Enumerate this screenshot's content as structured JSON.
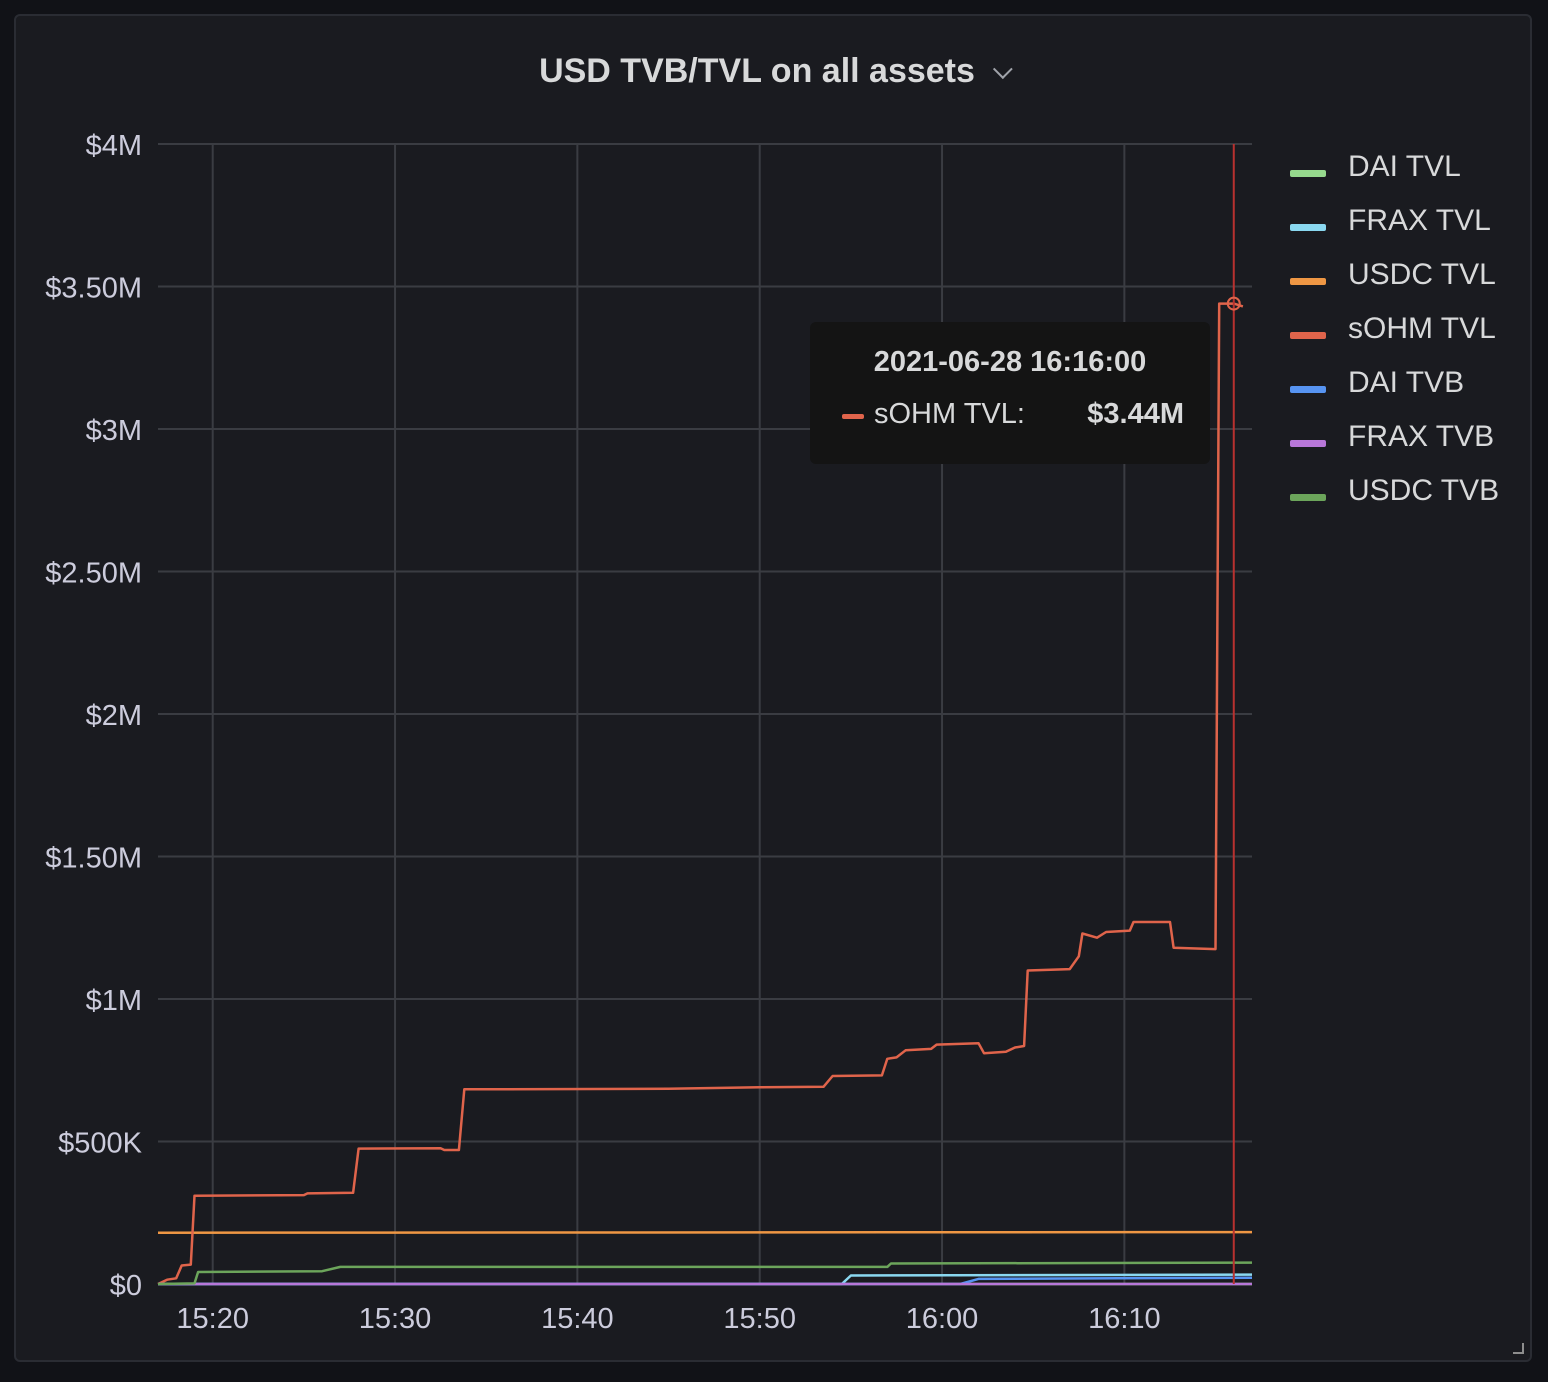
{
  "panel": {
    "title": "USD TVB/TVL on all assets"
  },
  "tooltip": {
    "time": "2021-06-28 16:16:00",
    "series": "sOHM TVL:",
    "value": "$3.44M",
    "color": "#e0644b"
  },
  "chart_data": {
    "type": "line",
    "title": "USD TVB/TVL on all assets",
    "xlabel": "",
    "ylabel": "",
    "x_unit": "time (2021-06-28)",
    "xlim": [
      "15:17",
      "16:17"
    ],
    "ylim": [
      0,
      4000000
    ],
    "x_ticks": [
      "15:20",
      "15:30",
      "15:40",
      "15:50",
      "16:00",
      "16:10"
    ],
    "y_ticks": [
      {
        "value": 0,
        "label": "$0"
      },
      {
        "value": 500000,
        "label": "$500K"
      },
      {
        "value": 1000000,
        "label": "$1M"
      },
      {
        "value": 1500000,
        "label": "$1.50M"
      },
      {
        "value": 2000000,
        "label": "$2M"
      },
      {
        "value": 2500000,
        "label": "$2.50M"
      },
      {
        "value": 3000000,
        "label": "$3M"
      },
      {
        "value": 3500000,
        "label": "$3.50M"
      },
      {
        "value": 4000000,
        "label": "$4M"
      }
    ],
    "grid": true,
    "legend_position": "right",
    "cursor_time": "16:16",
    "series": [
      {
        "name": "DAI TVL",
        "color": "#96d98d",
        "points": [
          [
            "15:17",
            0
          ],
          [
            "16:17",
            0
          ]
        ]
      },
      {
        "name": "FRAX TVL",
        "color": "#8ad8f0",
        "points": [
          [
            "15:17",
            0
          ],
          [
            "15:54.5",
            0
          ],
          [
            "15:55",
            30000
          ],
          [
            "16:17",
            33000
          ]
        ]
      },
      {
        "name": "USDC TVL",
        "color": "#ef9744",
        "points": [
          [
            "15:17",
            180000
          ],
          [
            "16:17",
            182000
          ]
        ]
      },
      {
        "name": "sOHM TVL",
        "color": "#e0644b",
        "points": [
          [
            "15:17",
            0
          ],
          [
            "15:17.5",
            15000
          ],
          [
            "15:18",
            20000
          ],
          [
            "15:18.3",
            65000
          ],
          [
            "15:18.8",
            68000
          ],
          [
            "15:19",
            310000
          ],
          [
            "15:25",
            312000
          ],
          [
            "15:25.2",
            318000
          ],
          [
            "15:27.7",
            320000
          ],
          [
            "15:28",
            475000
          ],
          [
            "15:32.5",
            476000
          ],
          [
            "15:32.7",
            470000
          ],
          [
            "15:33.5",
            470000
          ],
          [
            "15:33.8",
            683000
          ],
          [
            "15:45",
            685000
          ],
          [
            "15:50",
            690000
          ],
          [
            "15:53.5",
            692000
          ],
          [
            "15:54",
            730000
          ],
          [
            "15:56.7",
            732000
          ],
          [
            "15:57",
            790000
          ],
          [
            "15:57.5",
            795000
          ],
          [
            "15:58",
            820000
          ],
          [
            "15:59.4",
            825000
          ],
          [
            "15:59.7",
            840000
          ],
          [
            "16:02",
            845000
          ],
          [
            "16:02.3",
            810000
          ],
          [
            "16:03.5",
            815000
          ],
          [
            "16:04",
            830000
          ],
          [
            "16:04.5",
            835000
          ],
          [
            "16:04.7",
            1100000
          ],
          [
            "16:07",
            1105000
          ],
          [
            "16:07.5",
            1150000
          ],
          [
            "16:07.7",
            1230000
          ],
          [
            "16:08.5",
            1215000
          ],
          [
            "16:09",
            1235000
          ],
          [
            "16:10.3",
            1240000
          ],
          [
            "16:10.5",
            1270000
          ],
          [
            "16:12.5",
            1270000
          ],
          [
            "16:12.7",
            1180000
          ],
          [
            "16:15",
            1175000
          ],
          [
            "16:15.2",
            3440000
          ],
          [
            "16:16",
            3440000
          ],
          [
            "16:16.5",
            3430000
          ]
        ]
      },
      {
        "name": "DAI TVB",
        "color": "#5794f2",
        "points": [
          [
            "15:17",
            0
          ],
          [
            "16:01",
            0
          ],
          [
            "16:02",
            18000
          ],
          [
            "16:17",
            22000
          ]
        ]
      },
      {
        "name": "FRAX TVB",
        "color": "#b877d9",
        "points": [
          [
            "15:17",
            0
          ],
          [
            "16:17",
            0
          ]
        ]
      },
      {
        "name": "USDC TVB",
        "color": "#6ca55b",
        "points": [
          [
            "15:17",
            0
          ],
          [
            "15:19",
            2000
          ],
          [
            "15:19.2",
            42000
          ],
          [
            "15:26",
            45000
          ],
          [
            "15:27",
            60000
          ],
          [
            "15:57",
            60000
          ],
          [
            "15:57.2",
            72000
          ],
          [
            "16:17",
            75000
          ]
        ]
      }
    ]
  }
}
